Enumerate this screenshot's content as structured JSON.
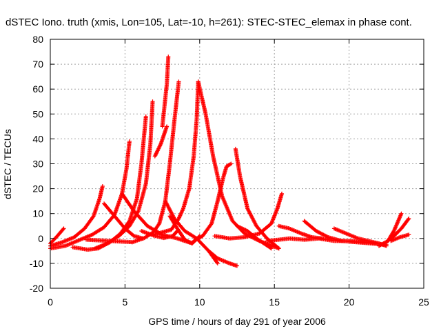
{
  "chart_data": {
    "type": "scatter",
    "title": "dSTEC Iono. truth (xmis, Lon=105, Lat=-10, h=261): STEC-STEC_elemax in phase cont.",
    "xlabel": "GPS time / hours of day 291 of year 2006",
    "ylabel": "dSTEC  / TECUs",
    "xlim": [
      0,
      25
    ],
    "ylim": [
      -20,
      80
    ],
    "xticks": [
      0,
      5,
      10,
      15,
      20,
      25
    ],
    "yticks": [
      -20,
      -10,
      0,
      10,
      20,
      30,
      40,
      50,
      60,
      70,
      80
    ],
    "grid": true,
    "marker": "+",
    "color": "#ff0000",
    "series": [
      {
        "points": [
          [
            0.0,
            -2.0
          ],
          [
            0.4,
            0.5
          ],
          [
            0.9,
            4.0
          ]
        ]
      },
      {
        "points": [
          [
            0.0,
            -3.0
          ],
          [
            0.8,
            -1.5
          ],
          [
            1.6,
            0.5
          ],
          [
            2.3,
            4.0
          ],
          [
            2.9,
            9.0
          ],
          [
            3.3,
            16.0
          ],
          [
            3.5,
            21.0
          ]
        ]
      },
      {
        "points": [
          [
            0.0,
            -4.0
          ],
          [
            1.0,
            -3.0
          ],
          [
            2.0,
            -0.5
          ],
          [
            2.8,
            1.5
          ],
          [
            3.6,
            4.5
          ],
          [
            4.3,
            9.5
          ],
          [
            4.8,
            18.0
          ],
          [
            5.1,
            28.0
          ],
          [
            5.3,
            39.0
          ]
        ]
      },
      {
        "points": [
          [
            1.5,
            -3.5
          ],
          [
            2.5,
            -4.5
          ],
          [
            3.2,
            -4.0
          ],
          [
            4.0,
            -1.5
          ],
          [
            4.7,
            2.0
          ],
          [
            5.3,
            7.0
          ],
          [
            5.8,
            16.0
          ],
          [
            6.1,
            30.0
          ],
          [
            6.4,
            49.0
          ]
        ]
      },
      {
        "points": [
          [
            3.0,
            -4.0
          ],
          [
            3.8,
            -2.0
          ],
          [
            4.6,
            1.0
          ],
          [
            5.3,
            5.0
          ],
          [
            5.9,
            11.0
          ],
          [
            6.4,
            22.0
          ],
          [
            6.7,
            38.0
          ],
          [
            6.85,
            55.0
          ]
        ]
      },
      {
        "points": [
          [
            2.4,
            -0.5
          ],
          [
            4.0,
            -1.0
          ],
          [
            5.5,
            -1.5
          ],
          [
            6.3,
            0.2
          ],
          [
            6.9,
            2.5
          ],
          [
            7.3,
            6.0
          ],
          [
            7.7,
            15.0
          ],
          [
            8.0,
            30.0
          ],
          [
            8.3,
            47.0
          ],
          [
            8.6,
            63.0
          ]
        ]
      },
      {
        "points": [
          [
            7.0,
            33.0
          ],
          [
            7.4,
            38.0
          ],
          [
            7.8,
            45.0
          ]
        ]
      },
      {
        "points": [
          [
            7.5,
            45.0
          ],
          [
            7.8,
            62.0
          ],
          [
            7.9,
            73.0
          ]
        ]
      },
      {
        "points": [
          [
            6.9,
            1.5
          ],
          [
            7.5,
            2.5
          ],
          [
            8.1,
            3.5
          ],
          [
            8.6,
            8.0
          ],
          [
            8.9,
            12.0
          ],
          [
            9.3,
            20.0
          ],
          [
            9.6,
            33.0
          ],
          [
            9.8,
            48.0
          ],
          [
            9.9,
            63.0
          ]
        ]
      },
      {
        "points": [
          [
            3.6,
            14.0
          ],
          [
            4.3,
            9.0
          ],
          [
            5.0,
            4.0
          ],
          [
            5.6,
            1.0
          ],
          [
            6.2,
            0.0
          ]
        ]
      },
      {
        "points": [
          [
            4.8,
            18.0
          ],
          [
            5.6,
            11.0
          ],
          [
            6.5,
            5.0
          ],
          [
            7.5,
            1.5
          ],
          [
            8.5,
            0.0
          ],
          [
            9.5,
            -2.0
          ]
        ]
      },
      {
        "points": [
          [
            7.7,
            15.0
          ],
          [
            8.3,
            8.0
          ],
          [
            9.0,
            3.0
          ],
          [
            9.8,
            0.0
          ],
          [
            10.6,
            -5.0
          ],
          [
            11.2,
            -10.0
          ]
        ]
      },
      {
        "points": [
          [
            8.0,
            9.0
          ],
          [
            8.5,
            4.0
          ],
          [
            9.0,
            -0.5
          ],
          [
            9.5,
            -2.0
          ],
          [
            10.0,
            1.0
          ]
        ]
      },
      {
        "points": [
          [
            6.1,
            3.0
          ],
          [
            6.9,
            1.2
          ],
          [
            7.6,
            0.2
          ],
          [
            8.2,
            1.0
          ],
          [
            8.5,
            3.0
          ]
        ]
      },
      {
        "points": [
          [
            9.9,
            63.0
          ],
          [
            10.4,
            50.0
          ],
          [
            10.9,
            33.0
          ],
          [
            11.5,
            17.0
          ],
          [
            12.2,
            7.0
          ],
          [
            13.0,
            2.0
          ],
          [
            14.0,
            -1.0
          ],
          [
            15.3,
            -4.0
          ]
        ]
      },
      {
        "points": [
          [
            9.6,
            -1.0
          ],
          [
            10.2,
            1.0
          ],
          [
            10.8,
            6.0
          ],
          [
            11.2,
            15.0
          ],
          [
            11.6,
            25.0
          ],
          [
            11.8,
            29.0
          ],
          [
            12.1,
            30.0
          ]
        ]
      },
      {
        "points": [
          [
            10.6,
            -5.0
          ],
          [
            11.2,
            -8.0
          ],
          [
            12.0,
            -10.0
          ],
          [
            12.5,
            -11.0
          ]
        ]
      },
      {
        "points": [
          [
            12.4,
            36.0
          ],
          [
            12.7,
            25.0
          ],
          [
            13.2,
            12.0
          ],
          [
            13.8,
            5.0
          ],
          [
            14.5,
            0.0
          ],
          [
            15.3,
            -4.0
          ]
        ]
      },
      {
        "points": [
          [
            11.0,
            1.0
          ],
          [
            12.0,
            0.0
          ],
          [
            13.0,
            0.5
          ],
          [
            14.0,
            2.0
          ],
          [
            14.8,
            6.0
          ],
          [
            15.2,
            12.0
          ],
          [
            15.5,
            18.0
          ]
        ]
      },
      {
        "points": [
          [
            12.5,
            5.0
          ],
          [
            13.2,
            3.0
          ],
          [
            13.8,
            0.0
          ],
          [
            14.3,
            -2.0
          ],
          [
            14.8,
            -4.0
          ]
        ]
      },
      {
        "points": [
          [
            14.5,
            -1.0
          ],
          [
            15.3,
            -0.5
          ],
          [
            16.0,
            0.0
          ],
          [
            17.0,
            -0.5
          ],
          [
            18.0,
            0.0
          ],
          [
            19.0,
            -1.0
          ],
          [
            20.0,
            -1.0
          ],
          [
            21.0,
            -1.5
          ],
          [
            22.0,
            -2.0
          ]
        ]
      },
      {
        "points": [
          [
            15.3,
            5.0
          ],
          [
            16.0,
            4.0
          ],
          [
            16.8,
            2.0
          ],
          [
            17.5,
            0.5
          ],
          [
            18.2,
            0.0
          ]
        ]
      },
      {
        "points": [
          [
            17.0,
            7.0
          ],
          [
            17.8,
            3.0
          ],
          [
            18.6,
            0.5
          ],
          [
            19.5,
            -1.0
          ],
          [
            20.5,
            -1.5
          ],
          [
            21.5,
            -2.0
          ],
          [
            22.5,
            -2.5
          ]
        ]
      },
      {
        "points": [
          [
            19.0,
            4.0
          ],
          [
            19.8,
            2.0
          ],
          [
            20.6,
            0.0
          ],
          [
            21.3,
            -1.0
          ],
          [
            22.0,
            -2.0
          ],
          [
            22.5,
            -3.0
          ]
        ]
      },
      {
        "points": [
          [
            22.0,
            -3.0
          ],
          [
            22.6,
            -1.0
          ],
          [
            23.0,
            3.0
          ],
          [
            23.5,
            10.0
          ]
        ]
      },
      {
        "points": [
          [
            22.5,
            -1.5
          ],
          [
            23.0,
            1.0
          ],
          [
            23.5,
            4.0
          ],
          [
            24.0,
            8.0
          ]
        ]
      },
      {
        "points": [
          [
            22.8,
            -1.0
          ],
          [
            23.4,
            0.5
          ],
          [
            24.0,
            1.5
          ]
        ]
      }
    ]
  }
}
